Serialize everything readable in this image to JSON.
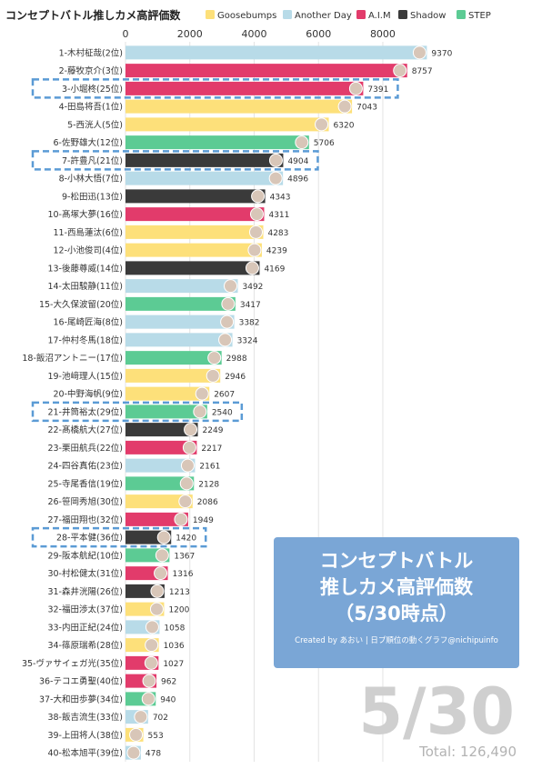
{
  "title": "コンセプトバトル推しカメ高評価数",
  "colors": {
    "Goosebumps": "#fde07a",
    "Another Day": "#b8dbe8",
    "A.I.M": "#e23b6b",
    "Shadow": "#3a3a3a",
    "STEP": "#5ccb94",
    "highlight": "#5b9bd5"
  },
  "chart_data": {
    "type": "bar",
    "orientation": "horizontal",
    "title": "コンセプトバトル推しカメ高評価数",
    "xlim": [
      0,
      9500
    ],
    "x_ticks": [
      0,
      2000,
      4000,
      6000,
      8000
    ],
    "grid": true,
    "legend_placement": "top",
    "legend": [
      "Goosebumps",
      "Another Day",
      "A.I.M",
      "Shadow",
      "STEP"
    ],
    "bars": [
      {
        "label": "1-木村柾哉(2位)",
        "value": 9370,
        "group": "Another Day"
      },
      {
        "label": "2-藤牧京介(3位)",
        "value": 8757,
        "group": "A.I.M"
      },
      {
        "label": "3-小堀柊(25位)",
        "value": 7391,
        "group": "A.I.M",
        "highlight": true
      },
      {
        "label": "4-田島将吾(1位)",
        "value": 7043,
        "group": "Goosebumps"
      },
      {
        "label": "5-西洸人(5位)",
        "value": 6320,
        "group": "Goosebumps"
      },
      {
        "label": "6-佐野雄大(12位)",
        "value": 5706,
        "group": "STEP"
      },
      {
        "label": "7-許豊凡(21位)",
        "value": 4904,
        "group": "Shadow",
        "highlight": true
      },
      {
        "label": "8-小林大悟(7位)",
        "value": 4896,
        "group": "Another Day"
      },
      {
        "label": "9-松田迅(13位)",
        "value": 4343,
        "group": "Shadow"
      },
      {
        "label": "10-髙塚大夢(16位)",
        "value": 4311,
        "group": "A.I.M"
      },
      {
        "label": "11-西島蓮汰(6位)",
        "value": 4283,
        "group": "Goosebumps"
      },
      {
        "label": "12-小池俊司(4位)",
        "value": 4239,
        "group": "Goosebumps"
      },
      {
        "label": "13-後藤尊威(14位)",
        "value": 4169,
        "group": "Shadow"
      },
      {
        "label": "14-太田駿静(11位)",
        "value": 3492,
        "group": "Another Day"
      },
      {
        "label": "15-大久保波留(20位)",
        "value": 3417,
        "group": "STEP"
      },
      {
        "label": "16-尾崎匠海(8位)",
        "value": 3382,
        "group": "Another Day"
      },
      {
        "label": "17-仲村冬馬(18位)",
        "value": 3324,
        "group": "Another Day"
      },
      {
        "label": "18-飯沼アントニー(17位)",
        "value": 2988,
        "group": "STEP"
      },
      {
        "label": "19-池﨑理人(15位)",
        "value": 2946,
        "group": "Goosebumps"
      },
      {
        "label": "20-中野海帆(9位)",
        "value": 2607,
        "group": "Goosebumps"
      },
      {
        "label": "21-井筒裕太(29位)",
        "value": 2540,
        "group": "STEP",
        "highlight": true
      },
      {
        "label": "22-髙橋航大(27位)",
        "value": 2249,
        "group": "Shadow"
      },
      {
        "label": "23-栗田航兵(22位)",
        "value": 2217,
        "group": "A.I.M"
      },
      {
        "label": "24-四谷真佑(23位)",
        "value": 2161,
        "group": "Another Day"
      },
      {
        "label": "25-寺尾香信(19位)",
        "value": 2128,
        "group": "STEP"
      },
      {
        "label": "26-笹岡秀旭(30位)",
        "value": 2086,
        "group": "Goosebumps"
      },
      {
        "label": "27-福田翔也(32位)",
        "value": 1949,
        "group": "A.I.M"
      },
      {
        "label": "28-平本健(36位)",
        "value": 1420,
        "group": "Shadow",
        "highlight": true
      },
      {
        "label": "29-阪本航紀(10位)",
        "value": 1367,
        "group": "STEP"
      },
      {
        "label": "30-村松健太(31位)",
        "value": 1316,
        "group": "A.I.M"
      },
      {
        "label": "31-森井洸陽(26位)",
        "value": 1213,
        "group": "Shadow"
      },
      {
        "label": "32-福田渉太(37位)",
        "value": 1200,
        "group": "Goosebumps"
      },
      {
        "label": "33-内田正紀(24位)",
        "value": 1058,
        "group": "Another Day"
      },
      {
        "label": "34-篠原瑞希(28位)",
        "value": 1036,
        "group": "Goosebumps"
      },
      {
        "label": "35-ヴァサイェガ光(35位)",
        "value": 1027,
        "group": "A.I.M"
      },
      {
        "label": "36-テコエ勇聖(40位)",
        "value": 962,
        "group": "A.I.M"
      },
      {
        "label": "37-大和田歩夢(34位)",
        "value": 940,
        "group": "STEP"
      },
      {
        "label": "38-飯吉流生(33位)",
        "value": 702,
        "group": "Another Day"
      },
      {
        "label": "39-上田将人(38位)",
        "value": 553,
        "group": "Goosebumps"
      },
      {
        "label": "40-松本旭平(39位)",
        "value": 478,
        "group": "Another Day"
      }
    ]
  },
  "info_box": {
    "line1": "コンセプトバトル",
    "line2": "推しカメ高評価数",
    "line3": "（5/30時点）",
    "credit": "Created by あおい | 日プ順位の動くグラフ@nichipuinfo"
  },
  "date_label": "5/30",
  "total_label": "Total: 126,490"
}
